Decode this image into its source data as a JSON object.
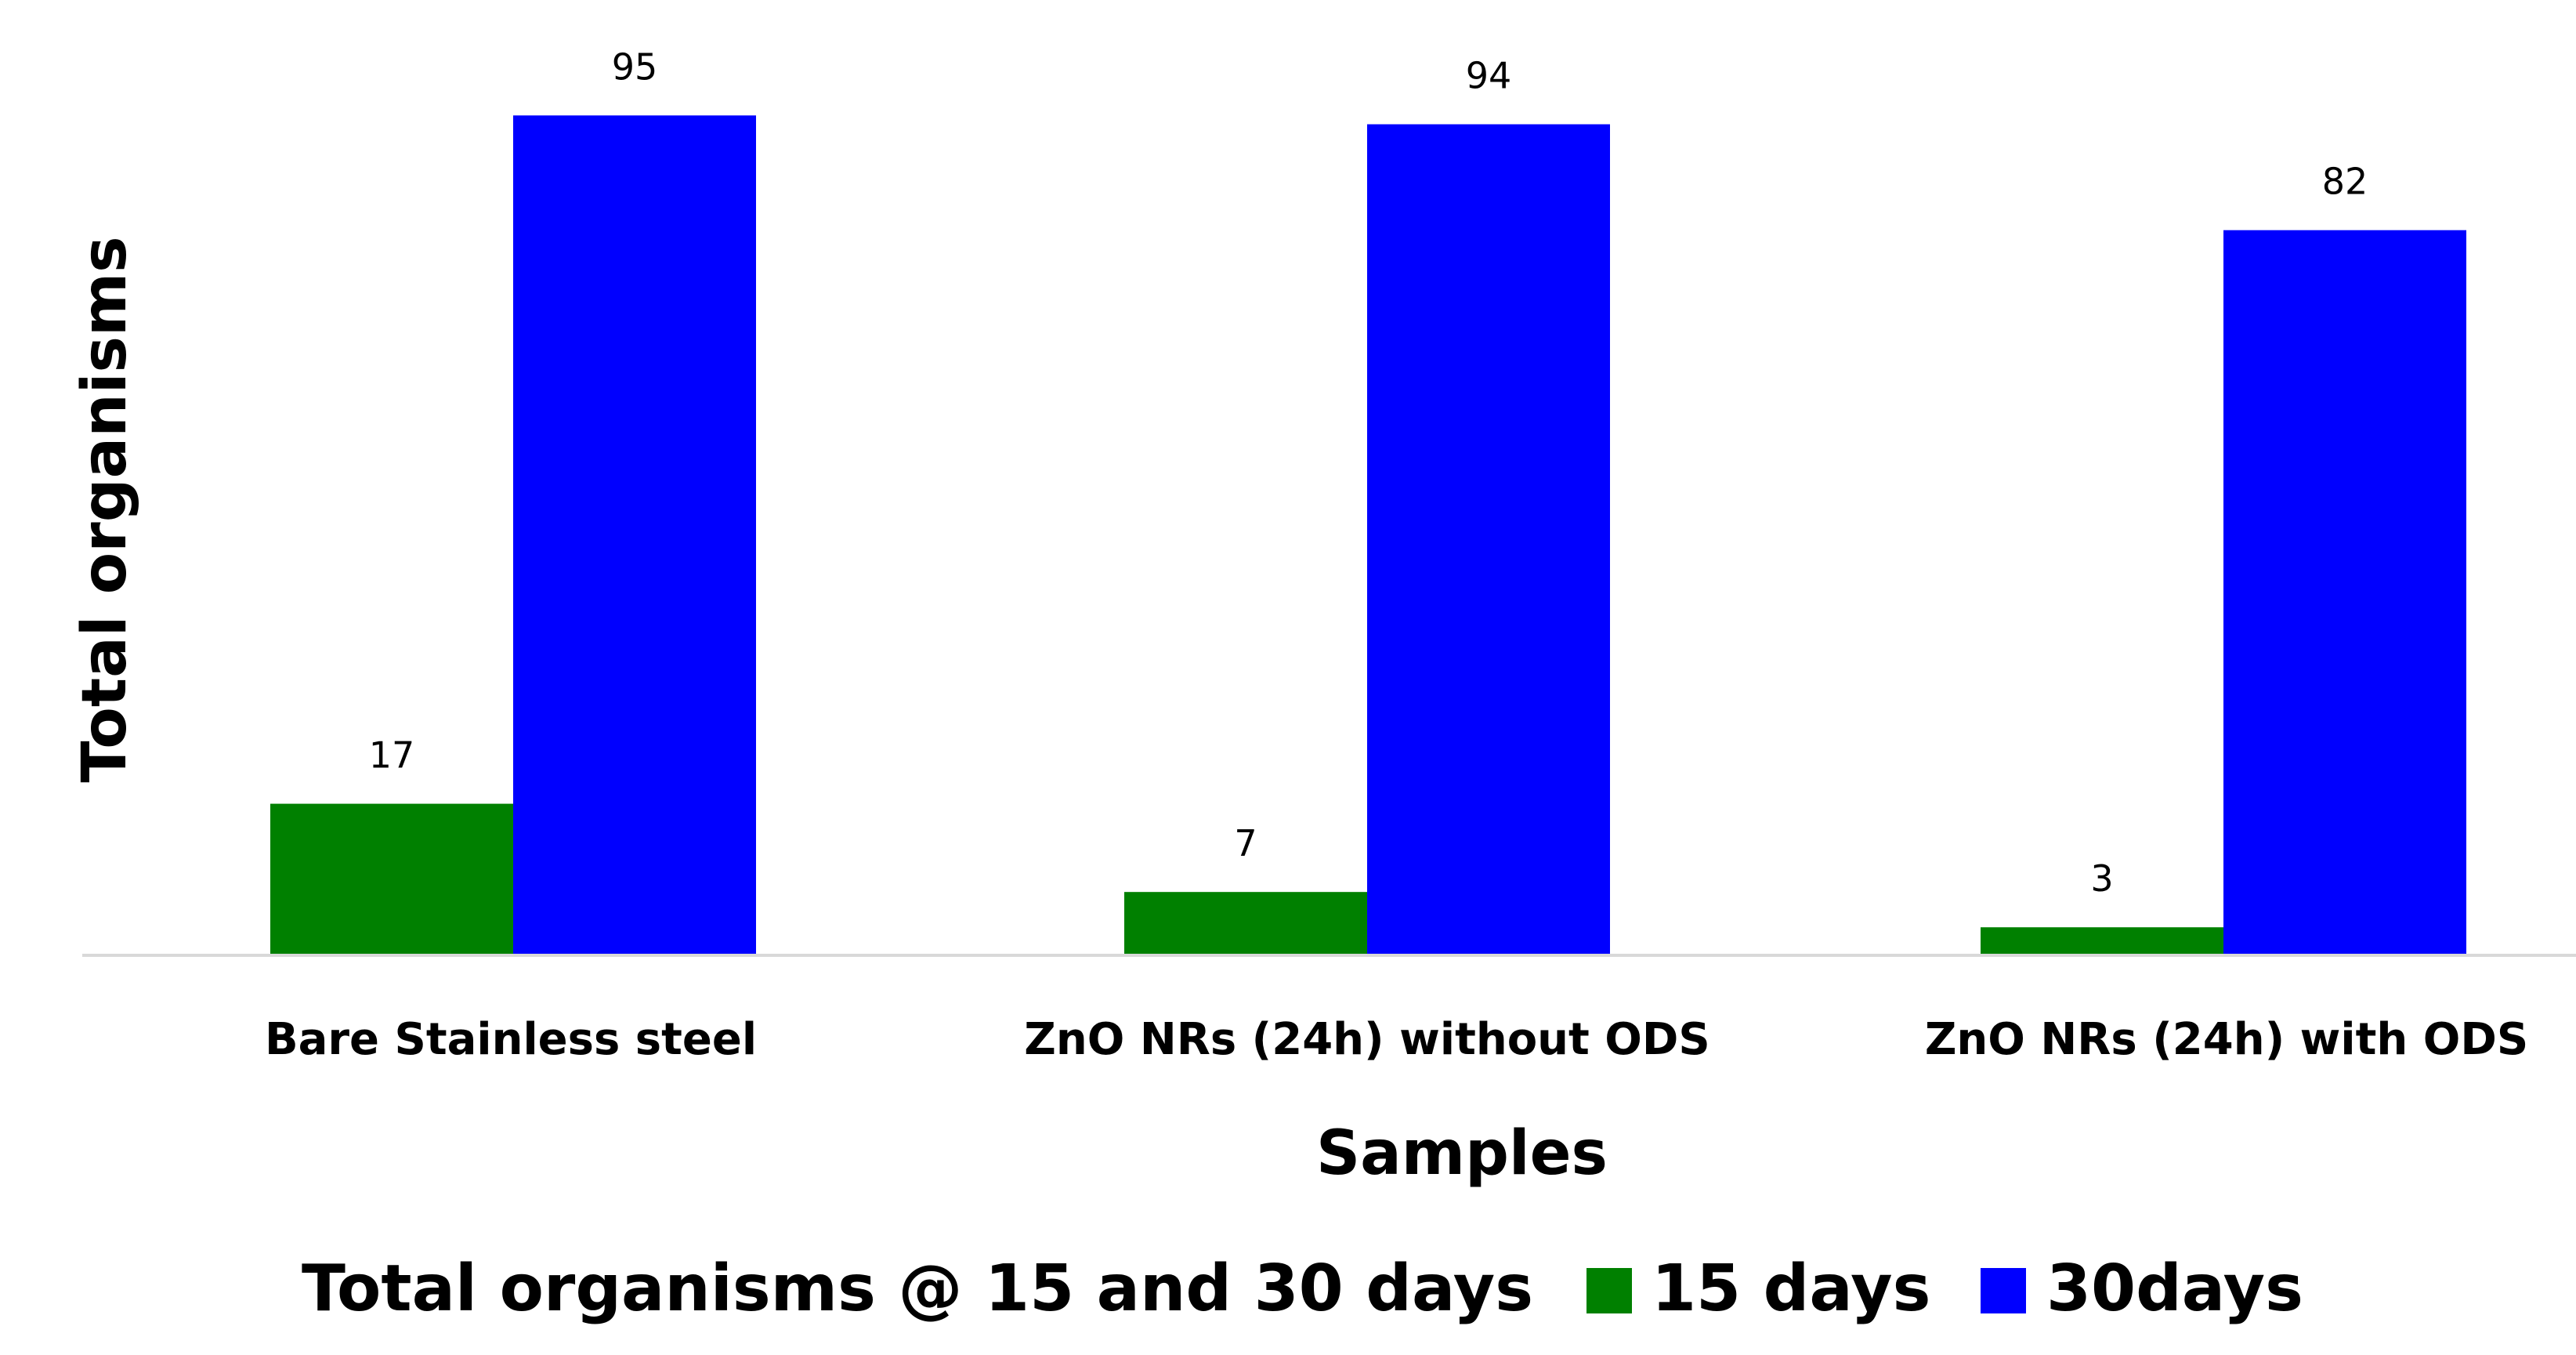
{
  "chart_data": {
    "type": "bar",
    "title": "Total organisms @ 15 and 30 days",
    "xlabel": "Samples",
    "ylabel": "Total organisms",
    "categories": [
      "Bare Stainless steel",
      "ZnO NRs (24h) without ODS",
      "ZnO NRs (24h) with ODS"
    ],
    "series": [
      {
        "name": "15 days",
        "values": [
          17,
          7,
          3
        ],
        "color": "#008000"
      },
      {
        "name": "30days",
        "values": [
          95,
          94,
          82
        ],
        "color": "#0000FF"
      }
    ],
    "ylim": [
      0,
      100
    ],
    "grid": false,
    "legend_position": "bottom",
    "axis_line_color": "#D9D9D9"
  }
}
